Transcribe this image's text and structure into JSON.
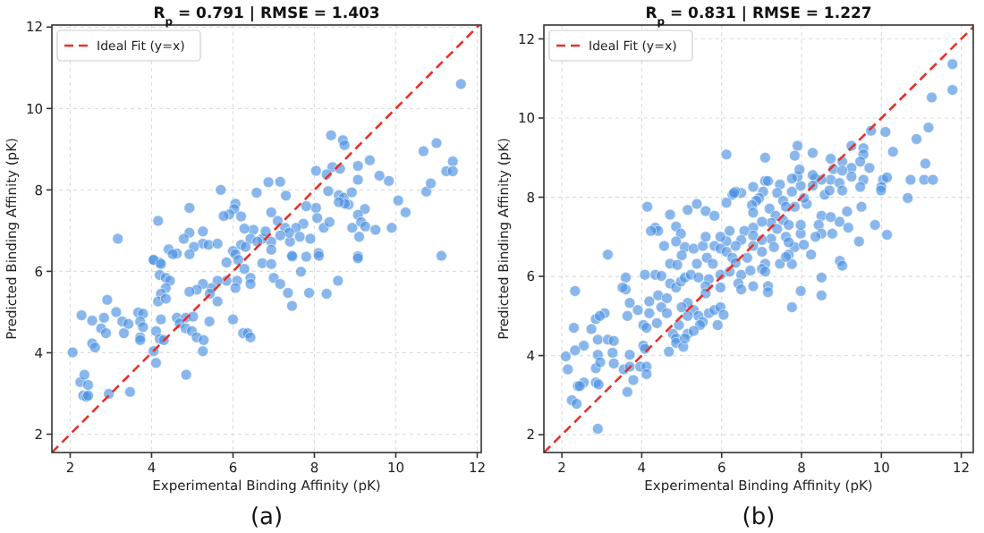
{
  "chart_data": [
    {
      "type": "scatter",
      "title": "R$_{p}$ = 0.791 | RMSE = 1.403",
      "xlabel": "Experimental Binding Affinity (pK)",
      "ylabel": "Predicted Binding Affinity (pK)",
      "annotations": [
        "(a)"
      ],
      "xlim": [
        1.55,
        12.1
      ],
      "ylim": [
        1.55,
        12.05
      ],
      "xticks": [
        2,
        4,
        6,
        8,
        10,
        12
      ],
      "yticks": [
        2,
        4,
        6,
        8,
        10,
        12
      ],
      "grid": true,
      "legend": "top left",
      "series": [
        {
          "marker": "circle",
          "color": "#4a90e2",
          "x": [
            11.6,
            10.68,
            11.0,
            10.75,
            10.86,
            11.4,
            11.24,
            11.4,
            11.12,
            8.41,
            8.7,
            8.74,
            8.44,
            8.3,
            8.63,
            9.07,
            9.36,
            9.07,
            9.6,
            9.83,
            8.04,
            8.34,
            8.6,
            8.72,
            8.92,
            8.84,
            8.75,
            8.6,
            10.06,
            10.24,
            9.24,
            9.07,
            9.15,
            8.93,
            9.1,
            9.25,
            9.5,
            9.9,
            9.07,
            8.04,
            7.8,
            8.07,
            8.23,
            8.37,
            7.73,
            7.55,
            7.64,
            7.9,
            7.4,
            7.46,
            7.8,
            8.1,
            7.16,
            6.87,
            7.3,
            6.58,
            6.94,
            7.1,
            7.28,
            7.38,
            7.16,
            6.94,
            6.72,
            6.8,
            6.5,
            6.28,
            6.43,
            6.6,
            6.94,
            6.2,
            6.31,
            6.0,
            5.84,
            5.7,
            6.06,
            6.03,
            6.2,
            5.91,
            5.77,
            5.26,
            4.93,
            4.93,
            4.79,
            5.26,
            5.4,
            5.62,
            5.04,
            4.62,
            4.42,
            4.16,
            3.17,
            4.05,
            4.2,
            4.05,
            4.23,
            4.52,
            4.93,
            6.06,
            6.13,
            7.45,
            8.11,
            9.07,
            6.72,
            6.94,
            7.67,
            7.0,
            7.16,
            6.28,
            6.43,
            6.1,
            6.06,
            5.84,
            5.62,
            5.47,
            5.26,
            5.11,
            4.93,
            4.2,
            4.35,
            4.45,
            4.35,
            4.23,
            4.16,
            4.35,
            6.43,
            7.35,
            7.87,
            8.3,
            8.58,
            7.45,
            5.62,
            5.43,
            3.67,
            3.79,
            3.13,
            2.91,
            2.28,
            2.54,
            2.83,
            3.28,
            3.43,
            3.72,
            3.79,
            2.76,
            2.88,
            3.32,
            3.72,
            3.72,
            2.54,
            2.61,
            2.06,
            4.11,
            4.23,
            4.2,
            4.3,
            4.05,
            4.11,
            4.62,
            4.84,
            5.02,
            4.69,
            4.84,
            4.99,
            5.11,
            5.28,
            5.26,
            5.42,
            6.0,
            4.85,
            6.25,
            6.36,
            6.43,
            2.25,
            2.35,
            2.44,
            2.32,
            2.4,
            2.44,
            2.95,
            3.47
          ],
          "values": [
            10.6,
            8.95,
            9.15,
            7.96,
            8.16,
            8.7,
            8.46,
            8.46,
            6.38,
            9.34,
            9.22,
            9.1,
            8.56,
            8.38,
            8.52,
            8.59,
            8.73,
            8.25,
            8.35,
            8.22,
            8.47,
            7.97,
            7.87,
            7.81,
            7.94,
            7.64,
            7.66,
            7.7,
            7.74,
            7.45,
            7.53,
            7.39,
            7.21,
            7.07,
            6.85,
            7.1,
            7.02,
            7.07,
            6.37,
            7.56,
            7.6,
            7.31,
            7.07,
            7.21,
            7.17,
            7.07,
            6.85,
            6.8,
            6.73,
            6.36,
            6.36,
            6.45,
            8.2,
            8.19,
            7.86,
            7.93,
            7.45,
            7.24,
            7.07,
            6.95,
            6.88,
            6.73,
            6.8,
            6.98,
            7.02,
            7.05,
            6.8,
            6.73,
            6.53,
            6.65,
            6.6,
            6.5,
            6.22,
            8.0,
            7.66,
            7.53,
            7.35,
            7.4,
            7.36,
            6.98,
            7.56,
            6.95,
            6.8,
            6.68,
            6.65,
            6.68,
            6.6,
            6.44,
            6.54,
            7.24,
            6.8,
            6.29,
            6.22,
            6.28,
            6.18,
            6.42,
            6.42,
            6.42,
            6.28,
            6.38,
            6.38,
            6.32,
            6.2,
            6.18,
            5.99,
            5.84,
            5.69,
            6.06,
            5.84,
            5.77,
            5.59,
            5.77,
            5.77,
            5.59,
            5.69,
            5.55,
            5.5,
            5.91,
            5.84,
            5.77,
            5.59,
            5.45,
            5.26,
            5.33,
            5.69,
            5.47,
            5.47,
            5.45,
            5.77,
            5.15,
            5.26,
            5.45,
            4.99,
            4.96,
            5.0,
            5.3,
            4.92,
            4.79,
            4.86,
            4.77,
            4.71,
            4.77,
            4.63,
            4.6,
            4.48,
            4.48,
            4.38,
            4.31,
            4.23,
            4.13,
            4.01,
            4.53,
            4.82,
            4.34,
            4.31,
            4.04,
            3.75,
            4.86,
            4.86,
            4.89,
            4.72,
            4.6,
            4.53,
            4.38,
            4.31,
            4.04,
            4.77,
            4.82,
            3.46,
            4.48,
            4.48,
            4.38,
            3.28,
            3.46,
            3.21,
            2.95,
            2.92,
            2.95,
            2.99,
            3.04
          ]
        },
        {
          "type": "line",
          "name": "Ideal Fit (y=x)",
          "color": "#e8302a",
          "line_style": "dashed",
          "x": [
            1.55,
            12.05
          ],
          "values": [
            1.55,
            12.05
          ]
        }
      ]
    },
    {
      "type": "scatter",
      "title": "R$_{p}$ = 0.831 | RMSE = 1.227",
      "xlabel": "Experimental Binding Affinity (pK)",
      "ylabel": "Predicted Binding Affinity (pK)",
      "annotations": [
        "(b)"
      ],
      "xlim": [
        1.55,
        12.3
      ],
      "ylim": [
        1.55,
        12.35
      ],
      "xticks": [
        2,
        4,
        6,
        8,
        10,
        12
      ],
      "yticks": [
        2,
        4,
        6,
        8,
        10,
        12
      ],
      "grid": true,
      "legend": "top left",
      "series": [
        {
          "marker": "circle",
          "color": "#4a90e2",
          "x": [
            11.78,
            11.78,
            11.26,
            11.18,
            10.88,
            10.1,
            10.29,
            10.04,
            10.0,
            9.99,
            10.14,
            10.73,
            11.07,
            11.29,
            11.1,
            10.66,
            9.84,
            10.14,
            9.44,
            8.96,
            9.25,
            9.55,
            9.55,
            9.47,
            9.25,
            9.02,
            8.73,
            8.8,
            9.02,
            9.25,
            9.55,
            9.7,
            9.74,
            9.47,
            8.73,
            8.95,
            8.5,
            8.35,
            8.28,
            8.28,
            8.58,
            8.7,
            9.02,
            9.5,
            9.14,
            8.95,
            9.17,
            8.5,
            8.73,
            8.43,
            8.5,
            8.77,
            7.98,
            8.35,
            7.98,
            8.13,
            7.83,
            8.06,
            7.76,
            7.98,
            7.9,
            7.95,
            8.28,
            7.9,
            7.83,
            7.76,
            6.12,
            7.09,
            7.09,
            7.16,
            7.04,
            7.46,
            7.39,
            7.54,
            7.61,
            7.2,
            7.35,
            7.24,
            7.54,
            7.68,
            7.39,
            7.61,
            7.24,
            7.31,
            7.83,
            7.68,
            8.06,
            8.24,
            6.79,
            6.94,
            6.87,
            6.76,
            6.49,
            6.35,
            6.27,
            6.79,
            7.01,
            6.79,
            6.57,
            6.79,
            7.01,
            6.79,
            6.49,
            6.35,
            6.12,
            6.2,
            5.97,
            5.82,
            5.97,
            6.12,
            6.27,
            6.64,
            7.01,
            7.09,
            7.46,
            7.68,
            6.12,
            6.31,
            5.6,
            5.38,
            5.15,
            4.71,
            4.14,
            4.34,
            4.41,
            4.56,
            4.86,
            4.98,
            4.86,
            5.08,
            5.3,
            5.53,
            5.63,
            5.78,
            5.38,
            5.0,
            4.71,
            4.89,
            5.82,
            5.6,
            3.15,
            4.23,
            2.33,
            3.07,
            2.85,
            2.95,
            2.74,
            2.3,
            2.55,
            2.33,
            2.1,
            2.15,
            2.9,
            3.15,
            3.3,
            3.27,
            2.9,
            2.85,
            2.96,
            3.3,
            2.85,
            2.55,
            2.4,
            2.45,
            2.92,
            2.25,
            2.37,
            2.9,
            3.6,
            3.6,
            3.52,
            3.7,
            3.64,
            3.9,
            4.19,
            4.19,
            4.04,
            4.12,
            4.04,
            4.08,
            3.7,
            3.55,
            3.7,
            3.96,
            4.12,
            4.12,
            3.79,
            3.64,
            4.08,
            4.34,
            4.49,
            4.71,
            4.86,
            4.41,
            4.63,
            4.49,
            4.63,
            4.93,
            4.38,
            4.78,
            4.86,
            4.86,
            5.04,
            4.68,
            4.98,
            5.08,
            5.23,
            5.42,
            5.68,
            5.97,
            6.2,
            5.6,
            5.6,
            5.97,
            5.15,
            5.0,
            5.3,
            5.42,
            5.68,
            5.82,
            5.97,
            6.05,
            5.9,
            5.53,
            5.46,
            5.15,
            5.15,
            5.08,
            5.3,
            6.35,
            6.49,
            6.42,
            6.49,
            6.72,
            7.01,
            7.09,
            6.79,
            7.16,
            7.16,
            7.76,
            7.61,
            7.98,
            8.5,
            8.5,
            7.76,
            9.02
          ],
          "values": [
            11.36,
            10.71,
            10.52,
            9.76,
            9.47,
            9.65,
            9.15,
            8.44,
            8.26,
            8.17,
            8.5,
            8.44,
            8.44,
            8.44,
            8.85,
            7.98,
            7.3,
            7.05,
            6.88,
            6.39,
            9.3,
            9.24,
            9.08,
            8.9,
            8.74,
            8.9,
            8.97,
            8.71,
            8.67,
            8.52,
            8.44,
            8.74,
            9.68,
            8.26,
            8.44,
            8.36,
            8.44,
            8.47,
            8.56,
            8.29,
            8.06,
            8.17,
            8.17,
            7.76,
            7.64,
            7.38,
            7.23,
            7.53,
            7.5,
            7.3,
            7.08,
            7.08,
            7.08,
            7.0,
            7.3,
            7.83,
            7.76,
            7.98,
            8.14,
            8.29,
            8.52,
            8.7,
            9.12,
            9.3,
            9.05,
            8.47,
            9.08,
            9.0,
            8.41,
            8.41,
            8.14,
            8.32,
            8.11,
            7.91,
            7.76,
            7.71,
            7.53,
            7.35,
            7.42,
            7.3,
            7.2,
            7.0,
            6.95,
            6.74,
            6.74,
            6.55,
            6.8,
            6.55,
            8.26,
            7.98,
            7.91,
            7.8,
            8.11,
            8.14,
            8.06,
            7.61,
            7.38,
            7.23,
            7.15,
            7.03,
            6.92,
            6.77,
            6.92,
            6.77,
            6.89,
            7.15,
            7.0,
            6.77,
            6.7,
            6.62,
            6.47,
            6.47,
            6.62,
            6.32,
            6.32,
            6.86,
            7.86,
            8.11,
            7.65,
            7.83,
            7.68,
            7.56,
            7.76,
            7.23,
            7.15,
            6.77,
            7.26,
            7.08,
            6.88,
            6.74,
            6.7,
            6.77,
            6.47,
            6.32,
            6.32,
            6.53,
            6.32,
            6.29,
            7.53,
            7.0,
            6.55,
            7.15,
            5.63,
            5.07,
            4.92,
            5.0,
            4.67,
            4.7,
            4.25,
            4.13,
            3.98,
            3.65,
            4.4,
            4.4,
            4.37,
            4.07,
            4.02,
            3.68,
            3.83,
            3.8,
            3.32,
            3.32,
            3.23,
            3.23,
            3.27,
            2.87,
            2.78,
            2.15,
            5.97,
            5.67,
            5.72,
            5.33,
            5.0,
            5.15,
            5.37,
            5.07,
            4.77,
            4.7,
            4.25,
            4.17,
            4.02,
            3.65,
            3.72,
            3.72,
            3.72,
            3.53,
            3.38,
            3.08,
            6.04,
            6.04,
            6.01,
            5.82,
            5.72,
            5.52,
            5.45,
            5.22,
            5.07,
            4.77,
            4.82,
            4.55,
            4.43,
            4.32,
            4.22,
            4.1,
            5.87,
            5.97,
            6.04,
            5.97,
            5.93,
            6.04,
            6.12,
            5.75,
            5.57,
            5.72,
            5.33,
            5.22,
            5.15,
            5.0,
            5.07,
            5.15,
            5.22,
            5.03,
            4.77,
            4.85,
            4.77,
            5.0,
            4.55,
            4.43,
            4.62,
            6.34,
            6.04,
            5.82,
            5.67,
            6.15,
            6.19,
            6.12,
            5.75,
            5.75,
            5.6,
            6.31,
            6.49,
            5.63,
            5.97,
            5.52,
            5.22,
            6.27
          ]
        },
        {
          "type": "line",
          "name": "Ideal Fit (y=x)",
          "color": "#e8302a",
          "line_style": "dashed",
          "x": [
            1.55,
            12.3
          ],
          "values": [
            1.55,
            12.3
          ]
        }
      ]
    }
  ]
}
